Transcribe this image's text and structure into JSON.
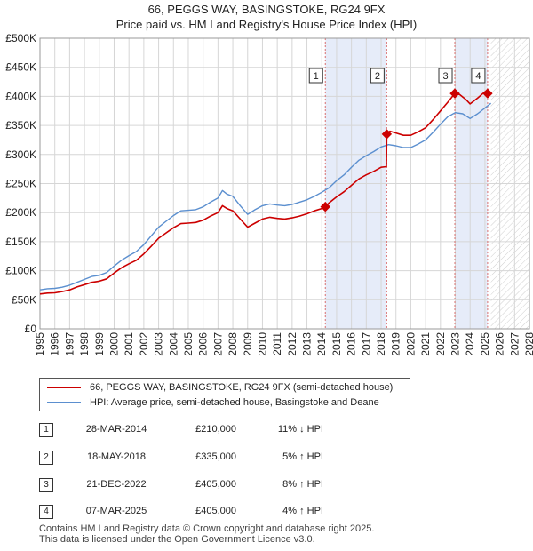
{
  "header": {
    "title_line1": "66, PEGGS WAY, BASINGSTOKE, RG24 9FX",
    "title_line2": "Price paid vs. HM Land Registry's House Price Index (HPI)"
  },
  "legend": {
    "property_label": "66, PEGGS WAY, BASINGSTOKE, RG24 9FX (semi-detached house)",
    "hpi_label": "HPI: Average price, semi-detached house, Basingstoke and Deane"
  },
  "colors": {
    "property": "#cc0000",
    "hpi": "#5b8fcf",
    "shade": "#dde6f7",
    "grid": "#d6d6d6",
    "marker_line": "#d97070"
  },
  "transactions": [
    {
      "id": "1",
      "date": "28-MAR-2014",
      "price": "£210,000",
      "hpi": "11% ↓ HPI"
    },
    {
      "id": "2",
      "date": "18-MAY-2018",
      "price": "£335,000",
      "hpi": "5% ↑ HPI"
    },
    {
      "id": "3",
      "date": "21-DEC-2022",
      "price": "£405,000",
      "hpi": "8% ↑ HPI"
    },
    {
      "id": "4",
      "date": "07-MAR-2025",
      "price": "£405,000",
      "hpi": "4% ↑ HPI"
    }
  ],
  "footer": {
    "line1": "Contains HM Land Registry data © Crown copyright and database right 2025.",
    "line2": "This data is licensed under the Open Government Licence v3.0."
  },
  "chart_data": {
    "type": "line",
    "title": "66, PEGGS WAY, BASINGSTOKE, RG24 9FX",
    "subtitle": "Price paid vs. HM Land Registry's House Price Index (HPI)",
    "xlabel": "",
    "ylabel": "",
    "xlim": [
      1995,
      2028
    ],
    "ylim": [
      0,
      500000
    ],
    "x_ticks": [
      "1995",
      "1996",
      "1997",
      "1998",
      "1999",
      "2000",
      "2001",
      "2002",
      "2003",
      "2004",
      "2005",
      "2006",
      "2007",
      "2008",
      "2009",
      "2010",
      "2011",
      "2012",
      "2013",
      "2014",
      "2015",
      "2016",
      "2017",
      "2018",
      "2019",
      "2020",
      "2021",
      "2022",
      "2023",
      "2024",
      "2025",
      "2026",
      "2027",
      "2028"
    ],
    "y_ticks": [
      {
        "value": 0,
        "label": "£0"
      },
      {
        "value": 50000,
        "label": "£50K"
      },
      {
        "value": 100000,
        "label": "£100K"
      },
      {
        "value": 150000,
        "label": "£150K"
      },
      {
        "value": 200000,
        "label": "£200K"
      },
      {
        "value": 250000,
        "label": "£250K"
      },
      {
        "value": 300000,
        "label": "£300K"
      },
      {
        "value": 350000,
        "label": "£350K"
      },
      {
        "value": 400000,
        "label": "£400K"
      },
      {
        "value": 450000,
        "label": "£450K"
      },
      {
        "value": 500000,
        "label": "£500K"
      }
    ],
    "grid": true,
    "shaded_ranges": [
      [
        2014.24,
        2018.38
      ],
      [
        2022.97,
        2025.18
      ]
    ],
    "future_hatch_from": 2025.4,
    "sales": [
      {
        "label": "1",
        "x": 2014.24,
        "y": 210000
      },
      {
        "label": "2",
        "x": 2018.38,
        "y": 335000
      },
      {
        "label": "3",
        "x": 2022.97,
        "y": 405000
      },
      {
        "label": "4",
        "x": 2025.18,
        "y": 405000
      }
    ],
    "series": [
      {
        "name": "HPI: Average price, semi-detached house, Basingstoke and Deane",
        "points": [
          [
            1995,
            67000
          ],
          [
            1995.5,
            69000
          ],
          [
            1996,
            69500
          ],
          [
            1996.5,
            71500
          ],
          [
            1997,
            75000
          ],
          [
            1997.5,
            80000
          ],
          [
            1998,
            85000
          ],
          [
            1998.5,
            90000
          ],
          [
            1999,
            92000
          ],
          [
            1999.5,
            97000
          ],
          [
            2000,
            108000
          ],
          [
            2000.5,
            118000
          ],
          [
            2001,
            126000
          ],
          [
            2001.5,
            133000
          ],
          [
            2002,
            145000
          ],
          [
            2002.5,
            160000
          ],
          [
            2003,
            175000
          ],
          [
            2003.5,
            185000
          ],
          [
            2004,
            195000
          ],
          [
            2004.5,
            203000
          ],
          [
            2005,
            204000
          ],
          [
            2005.5,
            205000
          ],
          [
            2006,
            210000
          ],
          [
            2006.5,
            218000
          ],
          [
            2007,
            225000
          ],
          [
            2007.3,
            238000
          ],
          [
            2007.6,
            232000
          ],
          [
            2008,
            228000
          ],
          [
            2008.5,
            212000
          ],
          [
            2009,
            197000
          ],
          [
            2009.5,
            205000
          ],
          [
            2010,
            212000
          ],
          [
            2010.5,
            215000
          ],
          [
            2011,
            213000
          ],
          [
            2011.5,
            212000
          ],
          [
            2012,
            214000
          ],
          [
            2012.5,
            218000
          ],
          [
            2013,
            222000
          ],
          [
            2013.5,
            228000
          ],
          [
            2014,
            235000
          ],
          [
            2014.5,
            243000
          ],
          [
            2015,
            255000
          ],
          [
            2015.5,
            265000
          ],
          [
            2016,
            278000
          ],
          [
            2016.5,
            290000
          ],
          [
            2017,
            298000
          ],
          [
            2017.5,
            305000
          ],
          [
            2018,
            313000
          ],
          [
            2018.5,
            317000
          ],
          [
            2019,
            315000
          ],
          [
            2019.5,
            312000
          ],
          [
            2020,
            312000
          ],
          [
            2020.5,
            318000
          ],
          [
            2021,
            325000
          ],
          [
            2021.5,
            338000
          ],
          [
            2022,
            352000
          ],
          [
            2022.5,
            365000
          ],
          [
            2023,
            372000
          ],
          [
            2023.5,
            370000
          ],
          [
            2024,
            362000
          ],
          [
            2024.5,
            370000
          ],
          [
            2025,
            380000
          ],
          [
            2025.4,
            388000
          ]
        ]
      },
      {
        "name": "66, PEGGS WAY, BASINGSTOKE, RG24 9FX (semi-detached house)",
        "points": [
          [
            1995,
            60000
          ],
          [
            1995.5,
            61500
          ],
          [
            1996,
            62000
          ],
          [
            1996.5,
            64000
          ],
          [
            1997,
            67000
          ],
          [
            1997.5,
            72000
          ],
          [
            1998,
            76000
          ],
          [
            1998.5,
            80000
          ],
          [
            1999,
            82000
          ],
          [
            1999.5,
            86000
          ],
          [
            2000,
            96000
          ],
          [
            2000.5,
            105000
          ],
          [
            2001,
            112000
          ],
          [
            2001.5,
            118000
          ],
          [
            2002,
            129000
          ],
          [
            2002.5,
            142000
          ],
          [
            2003,
            156000
          ],
          [
            2003.5,
            165000
          ],
          [
            2004,
            174000
          ],
          [
            2004.5,
            181000
          ],
          [
            2005,
            182000
          ],
          [
            2005.5,
            183000
          ],
          [
            2006,
            187000
          ],
          [
            2006.5,
            194000
          ],
          [
            2007,
            200000
          ],
          [
            2007.3,
            212000
          ],
          [
            2007.6,
            207000
          ],
          [
            2008,
            203000
          ],
          [
            2008.5,
            189000
          ],
          [
            2009,
            175000
          ],
          [
            2009.5,
            182000
          ],
          [
            2010,
            189000
          ],
          [
            2010.5,
            192000
          ],
          [
            2011,
            190000
          ],
          [
            2011.5,
            189000
          ],
          [
            2012,
            191000
          ],
          [
            2012.5,
            194000
          ],
          [
            2013,
            198000
          ],
          [
            2013.5,
            203000
          ],
          [
            2014,
            207000
          ],
          [
            2014.24,
            210000
          ],
          [
            2014.5,
            217000
          ],
          [
            2015,
            227000
          ],
          [
            2015.5,
            236000
          ],
          [
            2016,
            247000
          ],
          [
            2016.5,
            258000
          ],
          [
            2017,
            265000
          ],
          [
            2017.5,
            271000
          ],
          [
            2018,
            278000
          ],
          [
            2018.36,
            279000
          ],
          [
            2018.38,
            335000
          ],
          [
            2018.6,
            340000
          ],
          [
            2019,
            337000
          ],
          [
            2019.5,
            333000
          ],
          [
            2020,
            333000
          ],
          [
            2020.5,
            339000
          ],
          [
            2021,
            346000
          ],
          [
            2021.5,
            360000
          ],
          [
            2022,
            375000
          ],
          [
            2022.5,
            390000
          ],
          [
            2022.97,
            405000
          ],
          [
            2023.3,
            403000
          ],
          [
            2023.7,
            395000
          ],
          [
            2024,
            387000
          ],
          [
            2024.5,
            397000
          ],
          [
            2025,
            408000
          ],
          [
            2025.18,
            405000
          ]
        ]
      }
    ]
  }
}
